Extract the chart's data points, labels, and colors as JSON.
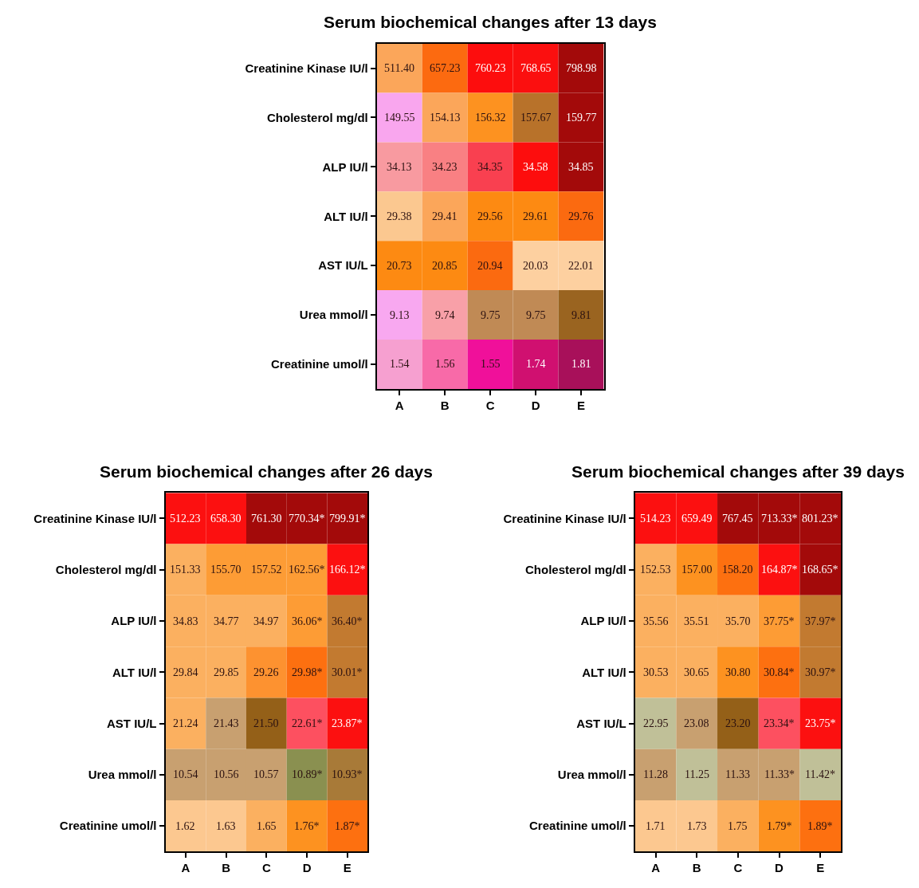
{
  "chart_data": [
    {
      "type": "heatmap",
      "title": "Serum biochemical changes after 13 days",
      "categories": [
        "A",
        "B",
        "C",
        "D",
        "E"
      ],
      "y_categories": [
        "Creatinine Kinase IU/l",
        "Cholesterol mg/dl",
        "ALP IU/l",
        "ALT IU/l",
        "AST IU/L",
        "Urea mmol/l",
        "Creatinine umol/l"
      ],
      "cells": [
        [
          511.4,
          657.23,
          760.23,
          768.65,
          798.98
        ],
        [
          149.55,
          154.13,
          156.32,
          157.67,
          159.77
        ],
        [
          34.13,
          34.23,
          34.35,
          34.58,
          34.85
        ],
        [
          29.38,
          29.41,
          29.56,
          29.61,
          29.76
        ],
        [
          20.73,
          20.85,
          20.94,
          20.03,
          22.01
        ],
        [
          9.13,
          9.74,
          9.75,
          9.75,
          9.81
        ],
        [
          1.54,
          1.56,
          1.55,
          1.74,
          1.81
        ]
      ],
      "cell_labels": [
        [
          "511.40",
          "657.23",
          "760.23",
          "768.65",
          "798.98"
        ],
        [
          "149.55",
          "154.13",
          "156.32",
          "157.67",
          "159.77"
        ],
        [
          "34.13",
          "34.23",
          "34.35",
          "34.58",
          "34.85"
        ],
        [
          "29.38",
          "29.41",
          "29.56",
          "29.61",
          "29.76"
        ],
        [
          "20.73",
          "20.85",
          "20.94",
          "20.03",
          "22.01"
        ],
        [
          "9.13",
          "9.74",
          "9.75",
          "9.75",
          "9.81"
        ],
        [
          "1.54",
          "1.56",
          "1.55",
          "1.74",
          "1.81"
        ]
      ],
      "colors": [
        [
          "#fba65a",
          "#fc6a10",
          "#fd0d0d",
          "#fb0f0f",
          "#a30a0a"
        ],
        [
          "#f9a6ee",
          "#fba65a",
          "#fd9220",
          "#b8722a",
          "#a30a0a"
        ],
        [
          "#f89aa0",
          "#f98083",
          "#f94050",
          "#fd0d0d",
          "#a30a0a"
        ],
        [
          "#fbc890",
          "#fba65a",
          "#fd8a12",
          "#fd8a12",
          "#fb6a10"
        ],
        [
          "#fd8a12",
          "#fd8a12",
          "#fb6a10",
          "#fdd0a0",
          "#fdd0a0"
        ],
        [
          "#f8a8f0",
          "#f8a0a8",
          "#c08a55",
          "#c08a55",
          "#9a6420"
        ],
        [
          "#f6a0d0",
          "#f86aa8",
          "#f0109a",
          "#d01070",
          "#a8105a"
        ]
      ]
    },
    {
      "type": "heatmap",
      "title": "Serum biochemical changes after 26 days",
      "categories": [
        "A",
        "B",
        "C",
        "D",
        "E"
      ],
      "y_categories": [
        "Creatinine Kinase IU/l",
        "Cholesterol mg/dl",
        "ALP IU/l",
        "ALT IU/l",
        "AST IU/L",
        "Urea mmol/l",
        "Creatinine umol/l"
      ],
      "cells": [
        [
          512.23,
          658.3,
          761.3,
          770.34,
          799.91
        ],
        [
          151.33,
          155.7,
          157.52,
          162.56,
          166.12
        ],
        [
          34.83,
          34.77,
          34.97,
          36.06,
          36.4
        ],
        [
          29.84,
          29.85,
          29.26,
          29.98,
          30.01
        ],
        [
          21.24,
          21.43,
          21.5,
          22.61,
          23.87
        ],
        [
          10.54,
          10.56,
          10.57,
          10.89,
          10.93
        ],
        [
          1.62,
          1.63,
          1.65,
          1.76,
          1.87
        ]
      ],
      "cell_labels": [
        [
          "512.23",
          "658.30",
          "761.30",
          "770.34*",
          "799.91*"
        ],
        [
          "151.33",
          "155.70",
          "157.52",
          "162.56*",
          "166.12*"
        ],
        [
          "34.83",
          "34.77",
          "34.97",
          "36.06*",
          "36.40*"
        ],
        [
          "29.84",
          "29.85",
          "29.26",
          "29.98*",
          "30.01*"
        ],
        [
          "21.24",
          "21.43",
          "21.50",
          "22.61*",
          "23.87*"
        ],
        [
          "10.54",
          "10.56",
          "10.57",
          "10.89*",
          "10.93*"
        ],
        [
          "1.62",
          "1.63",
          "1.65",
          "1.76*",
          "1.87*"
        ]
      ],
      "colors": [
        [
          "#fc1010",
          "#fc1010",
          "#a30a0a",
          "#a30a0a",
          "#a30a0a"
        ],
        [
          "#fbb060",
          "#fd9c35",
          "#fd9c35",
          "#fd9c35",
          "#fc1010"
        ],
        [
          "#fbb060",
          "#fbb060",
          "#fbb060",
          "#fd9c35",
          "#c27a30"
        ],
        [
          "#fbb060",
          "#fbb060",
          "#fd9230",
          "#fd7010",
          "#c27a30"
        ],
        [
          "#fbb060",
          "#c8a070",
          "#946018",
          "#fd5060",
          "#fc1010"
        ],
        [
          "#c8a070",
          "#c8a070",
          "#c8a070",
          "#8a9050",
          "#a87a38"
        ],
        [
          "#fcc890",
          "#fcc890",
          "#fbb060",
          "#fd9220",
          "#fd7010"
        ]
      ]
    },
    {
      "type": "heatmap",
      "title": "Serum biochemical changes after 39 days",
      "categories": [
        "A",
        "B",
        "C",
        "D",
        "E"
      ],
      "y_categories": [
        "Creatinine Kinase IU/l",
        "Cholesterol mg/dl",
        "ALP IU/l",
        "ALT IU/l",
        "AST IU/L",
        "Urea mmol/l",
        "Creatinine umol/l"
      ],
      "cells": [
        [
          514.23,
          659.49,
          767.45,
          713.33,
          801.23
        ],
        [
          152.53,
          157.0,
          158.2,
          164.87,
          168.65
        ],
        [
          35.56,
          35.51,
          35.7,
          37.75,
          37.97
        ],
        [
          30.53,
          30.65,
          30.8,
          30.84,
          30.97
        ],
        [
          22.95,
          23.08,
          23.2,
          23.34,
          23.75
        ],
        [
          11.28,
          11.25,
          11.33,
          11.33,
          11.42
        ],
        [
          1.71,
          1.73,
          1.75,
          1.79,
          1.89
        ]
      ],
      "cell_labels": [
        [
          "514.23",
          "659.49",
          "767.45",
          "713.33*",
          "801.23*"
        ],
        [
          "152.53",
          "157.00",
          "158.20",
          "164.87*",
          "168.65*"
        ],
        [
          "35.56",
          "35.51",
          "35.70",
          "37.75*",
          "37.97*"
        ],
        [
          "30.53",
          "30.65",
          "30.80",
          "30.84*",
          "30.97*"
        ],
        [
          "22.95",
          "23.08",
          "23.20",
          "23.34*",
          "23.75*"
        ],
        [
          "11.28",
          "11.25",
          "11.33",
          "11.33*",
          "11.42*"
        ],
        [
          "1.71",
          "1.73",
          "1.75",
          "1.79*",
          "1.89*"
        ]
      ],
      "colors": [
        [
          "#fc1010",
          "#fc1010",
          "#a30a0a",
          "#a30a0a",
          "#a30a0a"
        ],
        [
          "#fbb060",
          "#fd9220",
          "#fd7010",
          "#fc1010",
          "#a30a0a"
        ],
        [
          "#fbb060",
          "#fbb060",
          "#fbb060",
          "#fd9c35",
          "#c27a30"
        ],
        [
          "#fbb060",
          "#fbb060",
          "#fd9220",
          "#fd7010",
          "#c27a30"
        ],
        [
          "#c0c098",
          "#c8a070",
          "#946018",
          "#fd5060",
          "#fc1010"
        ],
        [
          "#c8a070",
          "#c0c098",
          "#c8a070",
          "#c8a070",
          "#c0c098"
        ],
        [
          "#fcc890",
          "#fcc890",
          "#fbb060",
          "#fd9220",
          "#fd7010"
        ]
      ]
    }
  ]
}
